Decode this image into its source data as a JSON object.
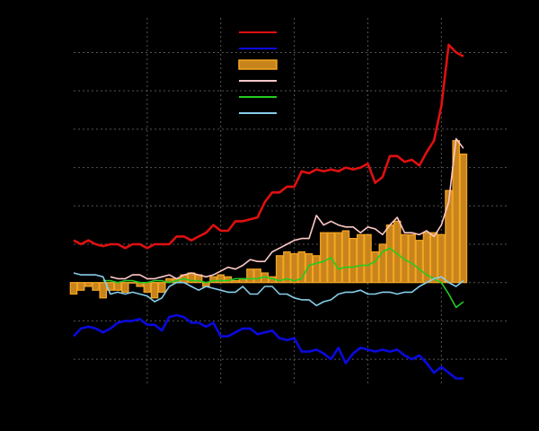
{
  "chart_data": {
    "type": "line",
    "x": [
      0,
      1,
      2,
      3,
      4,
      5,
      6,
      7,
      8,
      9,
      10,
      11,
      12,
      13,
      14,
      15,
      16,
      17,
      18,
      19,
      20,
      21,
      22,
      23,
      24,
      25,
      26,
      27,
      28,
      29,
      30,
      31,
      32,
      33,
      34,
      35,
      36,
      37,
      38,
      39,
      40,
      41,
      42,
      43,
      44,
      45,
      46,
      47,
      48,
      49,
      50,
      51,
      52,
      53
    ],
    "xlim": [
      0,
      59
    ],
    "xticks": [
      10,
      20,
      30,
      40,
      50
    ],
    "ylim": [
      -2.7,
      6.9
    ],
    "yticks": [
      -2,
      -1,
      0,
      1,
      2,
      3,
      4,
      5,
      6
    ],
    "grid": true,
    "legend_loc": "upper center",
    "background": "#000000",
    "series": [
      {
        "color": "#e01010",
        "values": [
          1.1,
          1.0,
          1.1,
          1.0,
          0.95,
          1.0,
          1.0,
          0.9,
          1.0,
          1.0,
          0.9,
          1.0,
          1.0,
          1.0,
          1.2,
          1.2,
          1.1,
          1.2,
          1.3,
          1.5,
          1.35,
          1.35,
          1.6,
          1.6,
          1.65,
          1.7,
          2.1,
          2.35,
          2.35,
          2.5,
          2.5,
          2.9,
          2.85,
          2.95,
          2.9,
          2.95,
          2.9,
          3.0,
          2.95,
          3.0,
          3.1,
          2.6,
          2.75,
          3.3,
          3.3,
          3.15,
          3.2,
          3.05,
          3.4,
          3.7,
          4.6,
          6.2,
          6.0,
          5.9
        ]
      },
      {
        "color": "#0a0ae0",
        "values": [
          -1.4,
          -1.2,
          -1.15,
          -1.2,
          -1.3,
          -1.2,
          -1.05,
          -1.0,
          -1.0,
          -0.95,
          -1.1,
          -1.1,
          -1.25,
          -0.9,
          -0.85,
          -0.9,
          -1.05,
          -1.05,
          -1.15,
          -1.05,
          -1.4,
          -1.4,
          -1.3,
          -1.2,
          -1.2,
          -1.35,
          -1.3,
          -1.25,
          -1.45,
          -1.5,
          -1.45,
          -1.8,
          -1.8,
          -1.75,
          -1.85,
          -2.0,
          -1.7,
          -2.1,
          -1.85,
          -1.7,
          -1.75,
          -1.8,
          -1.75,
          -1.8,
          -1.75,
          -1.9,
          -2.0,
          -1.9,
          -2.1,
          -2.35,
          -2.2,
          -2.35,
          -2.5,
          -2.5
        ]
      },
      {
        "kind": "bar",
        "color": "#c8841c",
        "edge": "#f5a623",
        "values": [
          -0.3,
          -0.2,
          -0.1,
          -0.2,
          -0.4,
          -0.2,
          -0.2,
          -0.25,
          0.0,
          -0.1,
          -0.25,
          -0.4,
          -0.25,
          0.1,
          0.1,
          0.2,
          0.25,
          0.2,
          -0.1,
          0.15,
          0.2,
          0.15,
          0.05,
          0.1,
          0.35,
          0.35,
          0.25,
          0.15,
          0.7,
          0.8,
          0.75,
          0.8,
          0.75,
          0.7,
          1.3,
          1.3,
          1.3,
          1.35,
          1.15,
          1.25,
          1.25,
          0.8,
          1.0,
          1.5,
          1.6,
          1.25,
          1.25,
          1.1,
          1.3,
          1.3,
          1.25,
          2.4,
          3.7,
          3.35
        ]
      },
      {
        "color": "#ffc8c8",
        "values": [
          null,
          null,
          null,
          null,
          null,
          0.15,
          0.1,
          0.1,
          0.2,
          0.2,
          0.1,
          0.1,
          0.15,
          0.2,
          0.1,
          0.2,
          0.25,
          0.2,
          0.15,
          0.2,
          0.3,
          0.4,
          0.35,
          0.45,
          0.6,
          0.55,
          0.55,
          0.8,
          0.9,
          1.0,
          1.1,
          1.15,
          1.15,
          1.75,
          1.5,
          1.6,
          1.5,
          1.45,
          1.45,
          1.3,
          1.45,
          1.4,
          1.25,
          1.5,
          1.7,
          1.3,
          1.3,
          1.25,
          1.35,
          1.2,
          1.5,
          2.1,
          3.75,
          3.5
        ]
      },
      {
        "color": "#22cc22",
        "values": [
          null,
          null,
          null,
          null,
          0.05,
          0.05,
          0.0,
          0.05,
          0.05,
          0.0,
          0.0,
          0.05,
          0.05,
          0.0,
          0.05,
          0.1,
          0.05,
          0.05,
          0.0,
          0.05,
          0.05,
          0.05,
          0.1,
          0.1,
          0.1,
          0.1,
          0.15,
          0.1,
          0.05,
          0.1,
          0.05,
          0.1,
          0.45,
          0.5,
          0.55,
          0.65,
          0.35,
          0.4,
          0.4,
          0.45,
          0.45,
          0.55,
          0.8,
          0.9,
          0.75,
          0.6,
          0.5,
          0.35,
          0.2,
          0.1,
          0.0,
          -0.3,
          -0.65,
          -0.5
        ]
      },
      {
        "color": "#87ceeb",
        "values": [
          0.25,
          0.2,
          0.2,
          0.2,
          0.15,
          -0.3,
          -0.25,
          -0.3,
          -0.25,
          -0.3,
          -0.35,
          -0.5,
          -0.4,
          -0.1,
          0.0,
          0.0,
          -0.1,
          -0.2,
          -0.1,
          -0.15,
          -0.2,
          -0.25,
          -0.25,
          -0.1,
          -0.3,
          -0.3,
          -0.1,
          -0.1,
          -0.3,
          -0.3,
          -0.4,
          -0.45,
          -0.45,
          -0.6,
          -0.5,
          -0.45,
          -0.3,
          -0.25,
          -0.25,
          -0.2,
          -0.3,
          -0.3,
          -0.25,
          -0.25,
          -0.3,
          -0.25,
          -0.25,
          -0.1,
          0.0,
          0.1,
          0.15,
          0.0,
          -0.1,
          0.05
        ]
      }
    ]
  }
}
